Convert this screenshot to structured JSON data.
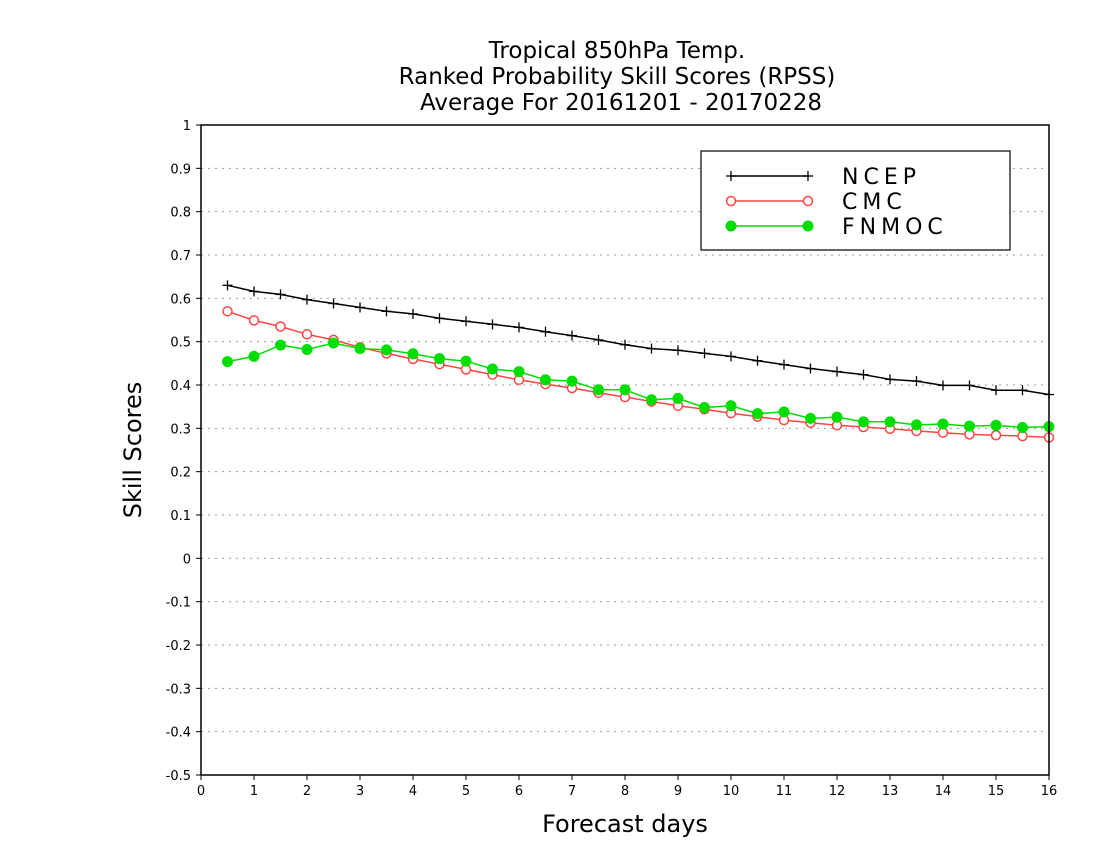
{
  "chart_data": {
    "type": "line",
    "title": [
      "Tropical 850hPa Temp.",
      "Ranked Probability Skill Scores (RPSS)",
      "Average For 20161201 - 20170228"
    ],
    "xlabel": "Forecast days",
    "ylabel": "Skill Scores",
    "xlim": [
      0,
      16
    ],
    "ylim": [
      -0.5,
      1
    ],
    "x_ticks": [
      0,
      1,
      2,
      3,
      4,
      5,
      6,
      7,
      8,
      9,
      10,
      11,
      12,
      13,
      14,
      15,
      16
    ],
    "y_ticks": [
      -0.5,
      -0.4,
      -0.3,
      -0.2,
      -0.1,
      0,
      0.1,
      0.2,
      0.3,
      0.4,
      0.5,
      0.6,
      0.7,
      0.8,
      0.9,
      1
    ],
    "y_tick_labels": [
      "-0.5",
      "-0.4",
      "-0.3",
      "-0.2",
      "-0.1",
      "0",
      "0.1",
      "0.2",
      "0.3",
      "0.4",
      "0.5",
      "0.6",
      "0.7",
      "0.8",
      "0.9",
      "1"
    ],
    "grid": "horizontal dotted",
    "legend_position": "top-right",
    "x": [
      0.5,
      1,
      1.5,
      2,
      2.5,
      3,
      3.5,
      4,
      4.5,
      5,
      5.5,
      6,
      6.5,
      7,
      7.5,
      8,
      8.5,
      9,
      9.5,
      10,
      10.5,
      11,
      11.5,
      12,
      12.5,
      13,
      13.5,
      14,
      14.5,
      15,
      15.5,
      16
    ],
    "series": [
      {
        "name": "NCEP",
        "color": "#000000",
        "marker": "plus",
        "values": [
          0.63,
          0.616,
          0.609,
          0.597,
          0.588,
          0.579,
          0.57,
          0.564,
          0.554,
          0.547,
          0.54,
          0.533,
          0.523,
          0.514,
          0.504,
          0.493,
          0.484,
          0.48,
          0.473,
          0.466,
          0.456,
          0.447,
          0.438,
          0.431,
          0.424,
          0.413,
          0.409,
          0.399,
          0.399,
          0.388,
          0.388,
          0.378
        ]
      },
      {
        "name": "CMC",
        "color": "#ff4444",
        "marker": "open-circle",
        "values": [
          0.57,
          0.549,
          0.535,
          0.517,
          0.504,
          0.487,
          0.473,
          0.46,
          0.448,
          0.436,
          0.424,
          0.412,
          0.402,
          0.393,
          0.382,
          0.372,
          0.362,
          0.352,
          0.344,
          0.335,
          0.327,
          0.319,
          0.313,
          0.307,
          0.303,
          0.299,
          0.294,
          0.29,
          0.286,
          0.284,
          0.282,
          0.279
        ]
      },
      {
        "name": "FNMOC",
        "color": "#00dd00",
        "marker": "filled-circle",
        "values": [
          0.454,
          0.466,
          0.492,
          0.482,
          0.497,
          0.484,
          0.481,
          0.472,
          0.461,
          0.455,
          0.437,
          0.431,
          0.412,
          0.409,
          0.389,
          0.389,
          0.366,
          0.369,
          0.348,
          0.352,
          0.334,
          0.338,
          0.323,
          0.326,
          0.315,
          0.315,
          0.308,
          0.31,
          0.305,
          0.307,
          0.302,
          0.304
        ]
      }
    ]
  }
}
